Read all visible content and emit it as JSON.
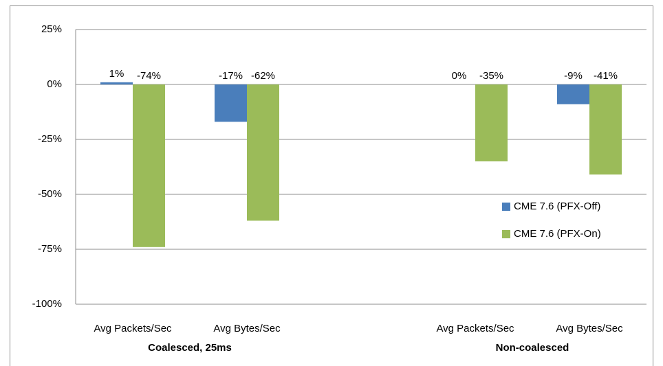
{
  "chart_data": {
    "type": "bar",
    "categories": [
      "Avg Packets/Sec",
      "Avg Bytes/Sec",
      null,
      "Avg Packets/Sec",
      "Avg Bytes/Sec"
    ],
    "group_labels": [
      "Coalesced, 25ms",
      "Non-coalesced"
    ],
    "series": [
      {
        "name": "CME 7.6 (PFX-Off)",
        "color": "#4a7ebb",
        "values": [
          1,
          -17,
          null,
          0,
          -9
        ],
        "value_labels": [
          "1%",
          "-17%",
          null,
          "0%",
          "-9%"
        ]
      },
      {
        "name": "CME 7.6 (PFX-On)",
        "color": "#9bbb59",
        "values": [
          -74,
          -62,
          null,
          -35,
          -41
        ],
        "value_labels": [
          "-74%",
          "-62%",
          null,
          "-35%",
          "-41%"
        ]
      }
    ],
    "ylim": [
      -100,
      25
    ],
    "yticks": [
      {
        "value": -100,
        "label": "-100%"
      },
      {
        "value": -75,
        "label": "-75%"
      },
      {
        "value": -50,
        "label": "-50%"
      },
      {
        "value": -25,
        "label": "-25%"
      },
      {
        "value": 0,
        "label": "0%"
      },
      {
        "value": 25,
        "label": "25%"
      }
    ],
    "grid": true,
    "legend": "right"
  }
}
